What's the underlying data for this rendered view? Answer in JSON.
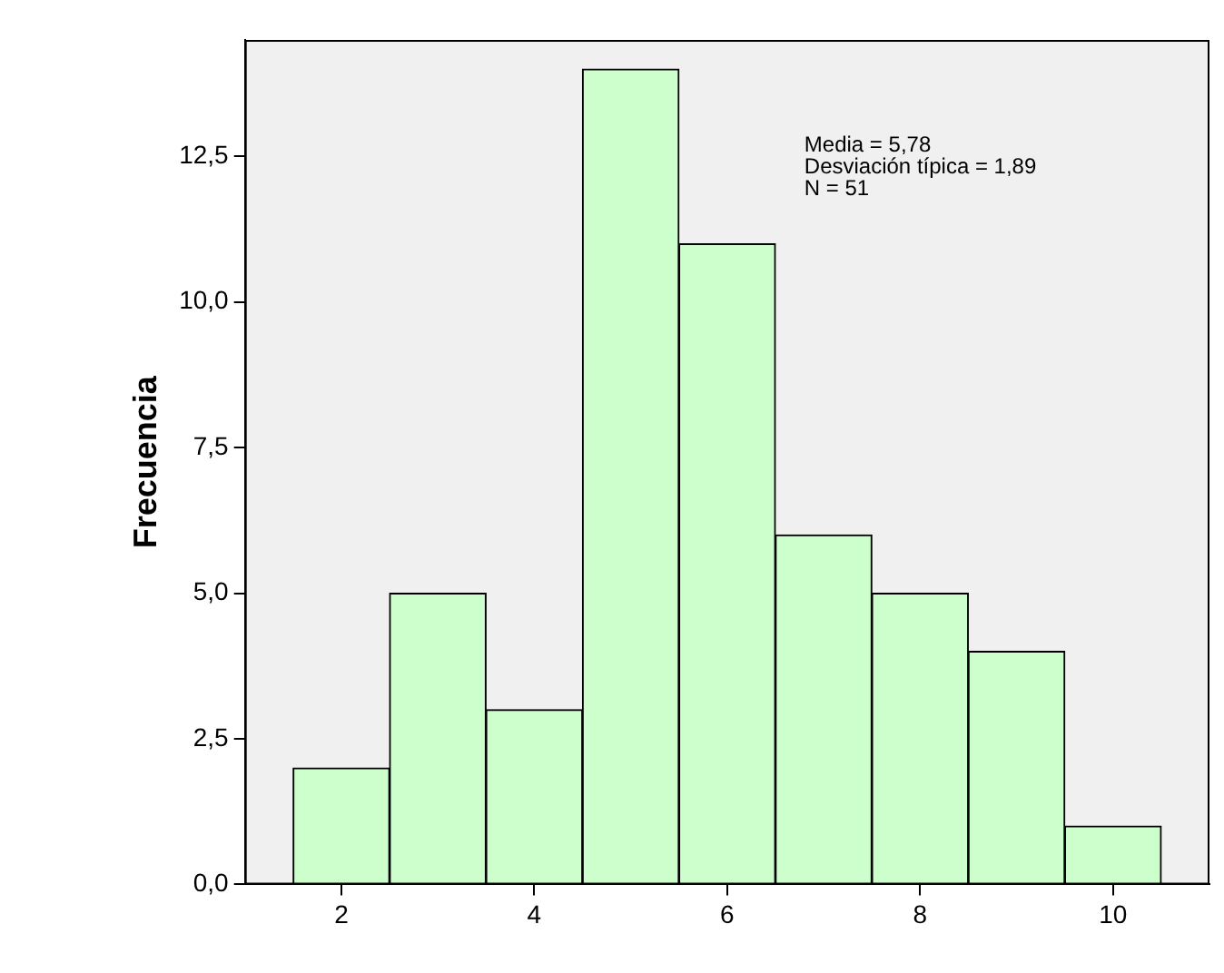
{
  "chart_data": {
    "type": "histogram",
    "ylabel": "Frecuencia",
    "bins": [
      1.5,
      2.5,
      3.5,
      4.5,
      5.5,
      6.5,
      7.5,
      8.5,
      9.5,
      10.5
    ],
    "values": [
      2,
      5,
      3,
      14,
      11,
      6,
      5,
      4,
      1
    ],
    "color": "#ccffcc",
    "xlim": [
      1,
      11
    ],
    "xticks": [
      2,
      4,
      6,
      8,
      10
    ],
    "ylim": [
      0,
      14.5
    ],
    "yticks": [
      {
        "value": 0,
        "label": "0,0"
      },
      {
        "value": 2.5,
        "label": "2,5"
      },
      {
        "value": 5,
        "label": "5,0"
      },
      {
        "value": 7.5,
        "label": "7,5"
      },
      {
        "value": 10,
        "label": "10,0"
      },
      {
        "value": 12.5,
        "label": "12,5"
      }
    ],
    "annotations": [
      "Media = 5,78",
      "Desviación típica = 1,89",
      "N = 51"
    ],
    "grid": false,
    "legend": false
  }
}
